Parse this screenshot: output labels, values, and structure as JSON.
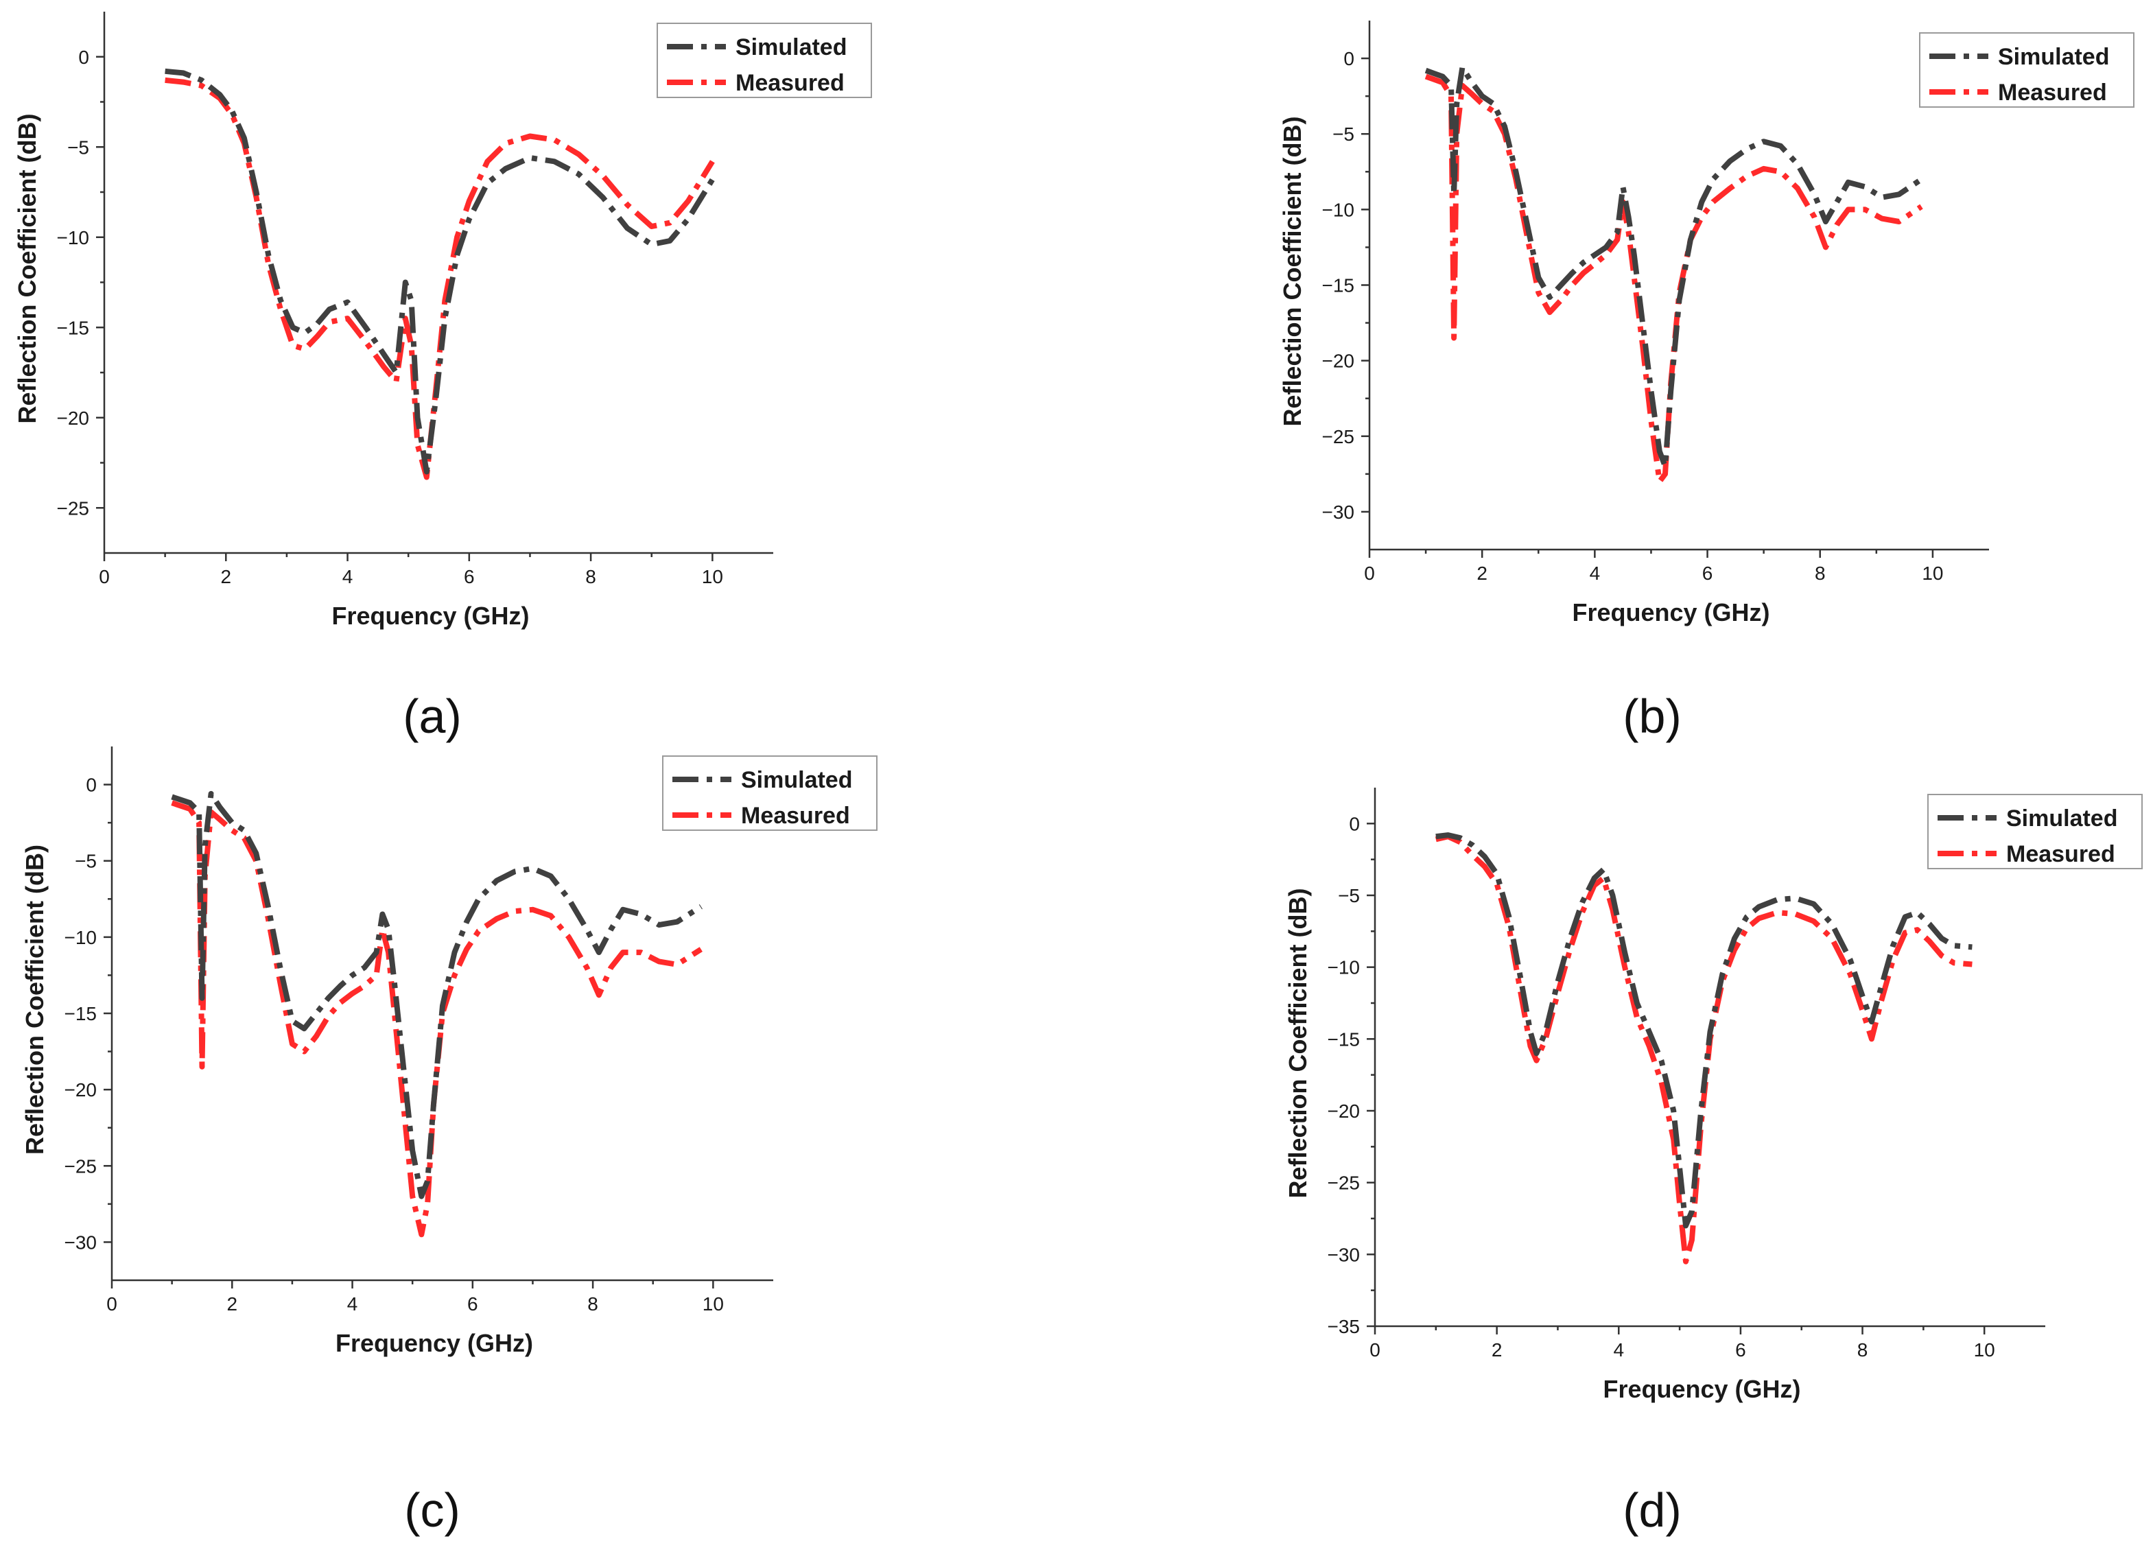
{
  "figure": {
    "panel_labels": [
      "(a)",
      "(b)",
      "(c)",
      "(d)"
    ]
  },
  "colors": {
    "simulated": "#404040",
    "measured": "#ff2a2a",
    "axis": "#333333"
  },
  "chart_data": [
    {
      "type": "line",
      "panel": "(a)",
      "title": "",
      "xlabel": "Frequency (GHz)",
      "ylabel": "Reflection Coefficient (dB)",
      "xlim": [
        0,
        11
      ],
      "ylim": [
        -27.5,
        2.5
      ],
      "xticks": [
        0,
        2,
        4,
        6,
        8,
        10
      ],
      "yticks": [
        0,
        -5,
        -10,
        -15,
        -20,
        -25
      ],
      "legend": [
        "Simulated",
        "Measured"
      ],
      "series": [
        {
          "name": "Simulated",
          "x": [
            1.0,
            1.3,
            1.6,
            1.9,
            2.1,
            2.3,
            2.5,
            2.7,
            2.9,
            3.1,
            3.3,
            3.5,
            3.7,
            4.0,
            4.3,
            4.6,
            4.8,
            4.95,
            5.05,
            5.15,
            5.3,
            5.45,
            5.6,
            5.8,
            6.0,
            6.3,
            6.6,
            7.0,
            7.4,
            7.8,
            8.2,
            8.6,
            9.0,
            9.3,
            9.6,
            10.0
          ],
          "y": [
            -0.8,
            -0.9,
            -1.3,
            -2.1,
            -3.0,
            -4.5,
            -7.5,
            -11.0,
            -13.5,
            -15.0,
            -15.3,
            -14.8,
            -14.0,
            -13.6,
            -15.0,
            -16.5,
            -17.5,
            -12.5,
            -13.5,
            -20.0,
            -23.0,
            -19.0,
            -14.5,
            -11.0,
            -9.0,
            -7.0,
            -6.2,
            -5.6,
            -5.8,
            -6.5,
            -7.8,
            -9.5,
            -10.4,
            -10.2,
            -9.0,
            -6.8
          ]
        },
        {
          "name": "Measured",
          "x": [
            1.0,
            1.3,
            1.6,
            1.9,
            2.1,
            2.3,
            2.5,
            2.7,
            2.9,
            3.1,
            3.3,
            3.5,
            3.7,
            4.0,
            4.3,
            4.6,
            4.8,
            4.95,
            5.05,
            5.15,
            5.3,
            5.45,
            5.6,
            5.8,
            6.0,
            6.3,
            6.6,
            7.0,
            7.4,
            7.8,
            8.2,
            8.6,
            9.0,
            9.3,
            9.6,
            10.0
          ],
          "y": [
            -1.3,
            -1.4,
            -1.6,
            -2.3,
            -3.2,
            -4.8,
            -7.8,
            -11.5,
            -14.0,
            -16.0,
            -16.2,
            -15.5,
            -14.7,
            -14.5,
            -15.8,
            -17.2,
            -18.0,
            -14.5,
            -16.0,
            -21.5,
            -23.3,
            -18.5,
            -13.5,
            -10.0,
            -8.0,
            -5.8,
            -4.8,
            -4.4,
            -4.6,
            -5.4,
            -6.6,
            -8.2,
            -9.4,
            -9.2,
            -8.0,
            -5.8
          ]
        }
      ]
    },
    {
      "type": "line",
      "panel": "(b)",
      "title": "",
      "xlabel": "Frequency (GHz)",
      "ylabel": "Reflection Coefficient (dB)",
      "xlim": [
        0,
        11
      ],
      "ylim": [
        -32.5,
        2.5
      ],
      "xticks": [
        0,
        2,
        4,
        6,
        8,
        10
      ],
      "yticks": [
        0,
        -5,
        -10,
        -15,
        -20,
        -25,
        -30
      ],
      "legend": [
        "Simulated",
        "Measured"
      ],
      "series": [
        {
          "name": "Simulated",
          "x": [
            1.0,
            1.15,
            1.3,
            1.45,
            1.5,
            1.55,
            1.65,
            1.8,
            2.0,
            2.2,
            2.4,
            2.6,
            2.8,
            3.0,
            3.2,
            3.4,
            3.6,
            3.8,
            4.0,
            4.2,
            4.4,
            4.5,
            4.6,
            4.7,
            4.85,
            5.0,
            5.15,
            5.25,
            5.35,
            5.5,
            5.7,
            5.9,
            6.1,
            6.4,
            6.7,
            7.0,
            7.3,
            7.6,
            7.9,
            8.1,
            8.3,
            8.5,
            8.8,
            9.1,
            9.4,
            9.8
          ],
          "y": [
            -0.8,
            -1.0,
            -1.2,
            -1.8,
            -9.0,
            -3.0,
            -0.6,
            -1.5,
            -2.5,
            -3.0,
            -4.5,
            -7.5,
            -11.0,
            -14.5,
            -15.8,
            -15.0,
            -14.2,
            -13.5,
            -13.0,
            -12.5,
            -11.5,
            -8.5,
            -10.5,
            -13.0,
            -17.5,
            -22.0,
            -26.0,
            -27.0,
            -22.0,
            -16.0,
            -12.0,
            -9.5,
            -8.0,
            -6.8,
            -6.0,
            -5.5,
            -5.8,
            -7.0,
            -9.0,
            -10.8,
            -9.5,
            -8.2,
            -8.5,
            -9.2,
            -9.0,
            -8.0
          ]
        },
        {
          "name": "Measured",
          "x": [
            1.0,
            1.15,
            1.3,
            1.45,
            1.5,
            1.55,
            1.65,
            1.8,
            2.0,
            2.2,
            2.4,
            2.6,
            2.8,
            3.0,
            3.2,
            3.4,
            3.6,
            3.8,
            4.0,
            4.2,
            4.4,
            4.5,
            4.6,
            4.7,
            4.85,
            5.0,
            5.15,
            5.25,
            5.35,
            5.5,
            5.7,
            5.9,
            6.1,
            6.4,
            6.7,
            7.0,
            7.3,
            7.6,
            7.9,
            8.1,
            8.3,
            8.5,
            8.8,
            9.1,
            9.4,
            9.8
          ],
          "y": [
            -1.2,
            -1.4,
            -1.6,
            -2.5,
            -18.5,
            -5.0,
            -1.8,
            -2.3,
            -3.0,
            -3.5,
            -5.0,
            -8.0,
            -11.8,
            -15.5,
            -16.8,
            -16.0,
            -15.0,
            -14.2,
            -13.6,
            -13.0,
            -12.0,
            -9.5,
            -11.5,
            -14.5,
            -19.0,
            -24.0,
            -28.0,
            -27.5,
            -21.5,
            -15.5,
            -12.0,
            -10.5,
            -9.5,
            -8.6,
            -7.8,
            -7.3,
            -7.5,
            -8.6,
            -10.5,
            -12.5,
            -11.0,
            -10.0,
            -10.0,
            -10.6,
            -10.8,
            -9.8
          ]
        }
      ]
    },
    {
      "type": "line",
      "panel": "(c)",
      "title": "",
      "xlabel": "Frequency (GHz)",
      "ylabel": "Reflection Coefficient (dB)",
      "xlim": [
        0,
        11
      ],
      "ylim": [
        -32.5,
        2.5
      ],
      "xticks": [
        0,
        2,
        4,
        6,
        8,
        10
      ],
      "yticks": [
        0,
        -5,
        -10,
        -15,
        -20,
        -25,
        -30
      ],
      "legend": [
        "Simulated",
        "Measured"
      ],
      "series": [
        {
          "name": "Simulated",
          "x": [
            1.0,
            1.15,
            1.3,
            1.45,
            1.5,
            1.55,
            1.65,
            1.8,
            2.0,
            2.2,
            2.4,
            2.6,
            2.8,
            3.0,
            3.2,
            3.4,
            3.6,
            3.8,
            4.0,
            4.2,
            4.4,
            4.5,
            4.6,
            4.7,
            4.85,
            5.0,
            5.15,
            5.25,
            5.35,
            5.5,
            5.7,
            5.9,
            6.1,
            6.4,
            6.7,
            7.0,
            7.3,
            7.6,
            7.9,
            8.1,
            8.3,
            8.5,
            8.8,
            9.1,
            9.4,
            9.8
          ],
          "y": [
            -0.8,
            -1.0,
            -1.2,
            -1.8,
            -14.0,
            -4.0,
            -0.6,
            -1.5,
            -2.5,
            -3.0,
            -4.5,
            -8.0,
            -12.0,
            -15.5,
            -16.0,
            -15.0,
            -14.0,
            -13.2,
            -12.5,
            -12.0,
            -11.0,
            -8.5,
            -9.5,
            -13.0,
            -18.5,
            -24.0,
            -27.0,
            -26.0,
            -21.0,
            -14.5,
            -11.0,
            -9.0,
            -7.5,
            -6.3,
            -5.7,
            -5.5,
            -6.0,
            -7.5,
            -9.5,
            -11.0,
            -9.5,
            -8.2,
            -8.5,
            -9.2,
            -9.0,
            -8.0
          ]
        },
        {
          "name": "Measured",
          "x": [
            1.0,
            1.15,
            1.3,
            1.45,
            1.5,
            1.55,
            1.65,
            1.8,
            2.0,
            2.2,
            2.4,
            2.6,
            2.8,
            3.0,
            3.2,
            3.4,
            3.6,
            3.8,
            4.0,
            4.2,
            4.4,
            4.5,
            4.6,
            4.7,
            4.85,
            5.0,
            5.15,
            5.25,
            5.35,
            5.5,
            5.7,
            5.9,
            6.1,
            6.4,
            6.7,
            7.0,
            7.3,
            7.6,
            7.9,
            8.1,
            8.3,
            8.5,
            8.8,
            9.1,
            9.4,
            9.8
          ],
          "y": [
            -1.2,
            -1.4,
            -1.6,
            -2.5,
            -18.5,
            -6.0,
            -1.8,
            -2.3,
            -3.0,
            -3.5,
            -5.0,
            -8.8,
            -13.0,
            -17.0,
            -17.5,
            -16.5,
            -15.2,
            -14.3,
            -13.7,
            -13.2,
            -12.5,
            -9.5,
            -11.0,
            -15.0,
            -21.0,
            -27.0,
            -29.5,
            -27.5,
            -21.0,
            -15.0,
            -12.5,
            -10.8,
            -9.6,
            -8.8,
            -8.3,
            -8.2,
            -8.6,
            -10.0,
            -12.0,
            -13.8,
            -12.0,
            -11.0,
            -11.0,
            -11.6,
            -11.8,
            -10.8
          ]
        }
      ]
    },
    {
      "type": "line",
      "panel": "(d)",
      "title": "",
      "xlabel": "Frequency (GHz)",
      "ylabel": "Reflection Coefficient (dB)",
      "xlim": [
        0,
        11
      ],
      "ylim": [
        -35,
        2.5
      ],
      "xticks": [
        0,
        2,
        4,
        6,
        8,
        10
      ],
      "yticks": [
        0,
        -5,
        -10,
        -15,
        -20,
        -25,
        -30,
        -35
      ],
      "legend": [
        "Simulated",
        "Measured"
      ],
      "series": [
        {
          "name": "Simulated",
          "x": [
            1.0,
            1.2,
            1.4,
            1.6,
            1.8,
            2.0,
            2.2,
            2.4,
            2.55,
            2.65,
            2.8,
            3.0,
            3.2,
            3.4,
            3.6,
            3.75,
            3.9,
            4.1,
            4.3,
            4.5,
            4.7,
            4.9,
            5.0,
            5.1,
            5.2,
            5.35,
            5.5,
            5.7,
            5.9,
            6.1,
            6.3,
            6.6,
            6.9,
            7.2,
            7.5,
            7.8,
            8.0,
            8.15,
            8.3,
            8.5,
            8.7,
            8.9,
            9.1,
            9.3,
            9.5,
            9.8
          ],
          "y": [
            -0.9,
            -0.8,
            -1.0,
            -1.5,
            -2.3,
            -3.5,
            -6.5,
            -11.0,
            -14.5,
            -16.0,
            -14.5,
            -11.0,
            -8.0,
            -5.5,
            -3.8,
            -3.2,
            -5.0,
            -9.0,
            -12.5,
            -14.5,
            -16.5,
            -20.0,
            -24.0,
            -28.0,
            -27.0,
            -20.0,
            -14.5,
            -10.5,
            -8.0,
            -6.5,
            -5.8,
            -5.3,
            -5.2,
            -5.6,
            -7.0,
            -9.5,
            -12.0,
            -13.8,
            -11.5,
            -8.5,
            -6.5,
            -6.2,
            -7.0,
            -8.0,
            -8.5,
            -8.6
          ]
        },
        {
          "name": "Measured",
          "x": [
            1.0,
            1.2,
            1.4,
            1.6,
            1.8,
            2.0,
            2.2,
            2.4,
            2.55,
            2.65,
            2.8,
            3.0,
            3.2,
            3.4,
            3.6,
            3.75,
            3.9,
            4.1,
            4.3,
            4.5,
            4.7,
            4.9,
            5.0,
            5.1,
            5.2,
            5.35,
            5.5,
            5.7,
            5.9,
            6.1,
            6.3,
            6.6,
            6.9,
            7.2,
            7.5,
            7.8,
            8.0,
            8.15,
            8.3,
            8.5,
            8.7,
            8.9,
            9.1,
            9.3,
            9.5,
            9.8
          ],
          "y": [
            -1.1,
            -0.9,
            -1.3,
            -2.2,
            -3.0,
            -4.2,
            -7.2,
            -12.0,
            -15.5,
            -16.5,
            -15.0,
            -11.8,
            -8.8,
            -6.2,
            -4.3,
            -3.8,
            -6.0,
            -10.0,
            -13.5,
            -15.5,
            -18.0,
            -22.0,
            -26.5,
            -30.5,
            -29.0,
            -21.0,
            -15.0,
            -11.0,
            -8.8,
            -7.3,
            -6.6,
            -6.2,
            -6.3,
            -6.8,
            -8.0,
            -10.5,
            -13.0,
            -15.0,
            -12.5,
            -9.5,
            -7.6,
            -7.4,
            -8.2,
            -9.2,
            -9.7,
            -9.8
          ]
        }
      ]
    }
  ]
}
